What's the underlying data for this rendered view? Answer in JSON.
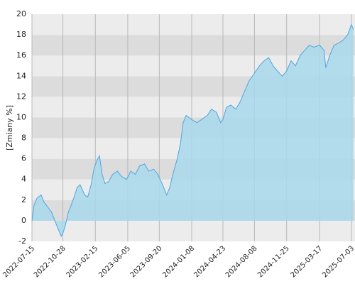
{
  "chart_data": {
    "type": "area",
    "y_label": "[Zmiany %]",
    "x": [
      "2022-07-15",
      "2022-07-22",
      "2022-08-01",
      "2022-08-15",
      "2022-08-25",
      "2022-09-10",
      "2022-09-20",
      "2022-10-05",
      "2022-10-15",
      "2022-10-22",
      "2022-10-28",
      "2022-11-05",
      "2022-11-15",
      "2022-11-25",
      "2022-12-05",
      "2022-12-15",
      "2022-12-25",
      "2023-01-10",
      "2023-01-20",
      "2023-02-01",
      "2023-02-10",
      "2023-02-20",
      "2023-03-01",
      "2023-03-10",
      "2023-03-20",
      "2023-04-01",
      "2023-04-15",
      "2023-05-01",
      "2023-05-15",
      "2023-06-01",
      "2023-06-15",
      "2023-07-01",
      "2023-07-15",
      "2023-08-01",
      "2023-08-15",
      "2023-09-01",
      "2023-09-15",
      "2023-10-01",
      "2023-10-15",
      "2023-10-25",
      "2023-11-05",
      "2023-11-20",
      "2023-12-01",
      "2023-12-10",
      "2023-12-20",
      "2024-01-08",
      "2024-01-25",
      "2024-02-10",
      "2024-03-01",
      "2024-03-15",
      "2024-04-01",
      "2024-04-15",
      "2024-04-23",
      "2024-05-05",
      "2024-05-20",
      "2024-06-05",
      "2024-06-20",
      "2024-07-05",
      "2024-07-20",
      "2024-08-08",
      "2024-08-25",
      "2024-09-10",
      "2024-09-25",
      "2024-10-10",
      "2024-10-25",
      "2024-11-10",
      "2024-11-25",
      "2024-12-10",
      "2024-12-25",
      "2025-01-10",
      "2025-01-25",
      "2025-02-10",
      "2025-02-25",
      "2025-03-17",
      "2025-04-01",
      "2025-04-07",
      "2025-04-20",
      "2025-05-05",
      "2025-05-20",
      "2025-06-05",
      "2025-06-20",
      "2025-07-03",
      "2025-07-10"
    ],
    "series": [
      {
        "color": "#4ea6e0",
        "fill": "#a8d8ec",
        "values": [
          0,
          1.5,
          2.2,
          2.5,
          1.8,
          1.2,
          0.8,
          -0.3,
          -1.0,
          -1.5,
          -1.2,
          -0.5,
          0.8,
          1.5,
          2.3,
          3.2,
          3.5,
          2.5,
          2.3,
          3.5,
          5.0,
          5.8,
          6.3,
          4.5,
          3.6,
          3.8,
          4.5,
          4.8,
          4.3,
          4.0,
          4.8,
          4.5,
          5.3,
          5.5,
          4.8,
          5.0,
          4.5,
          3.5,
          2.5,
          3.2,
          4.5,
          6.0,
          7.5,
          9.5,
          10.2,
          9.8,
          9.5,
          9.8,
          10.2,
          10.8,
          10.5,
          9.5,
          9.8,
          11.0,
          11.2,
          10.8,
          11.5,
          12.5,
          13.5,
          14.3,
          15.0,
          15.5,
          15.8,
          15.0,
          14.5,
          14.0,
          14.5,
          15.5,
          15.0,
          16.0,
          16.5,
          17.0,
          16.8,
          17.0,
          16.5,
          14.8,
          16.0,
          17.0,
          17.2,
          17.5,
          18.0,
          19.0,
          18.5
        ]
      }
    ],
    "xlim": [
      "2022-07-15",
      "2025-07-15"
    ],
    "xticks": [
      "2022-07-15",
      "2022-10-28",
      "2023-02-15",
      "2023-06-05",
      "2023-09-20",
      "2024-01-08",
      "2024-04-23",
      "2024-08-08",
      "2024-11-25",
      "2025-03-17",
      "2025-07-03"
    ],
    "ylim": [
      -2,
      20
    ],
    "yticks": [
      -2,
      0,
      2,
      4,
      6,
      8,
      10,
      12,
      14,
      16,
      18,
      20
    ],
    "grid": "banded",
    "band_colors": [
      "#ececec",
      "#dcdcdc"
    ]
  }
}
